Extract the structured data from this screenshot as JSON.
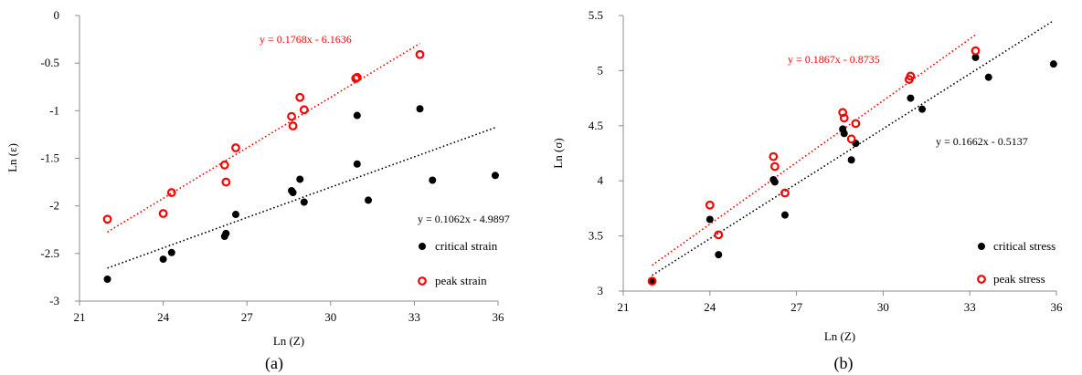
{
  "chart_data": [
    {
      "type": "scatter",
      "caption": "(a)",
      "xlabel": "Ln (Z)",
      "ylabel": "Ln (ε)",
      "xlim": [
        21,
        36
      ],
      "ylim": [
        -3,
        0
      ],
      "xticks": [
        21,
        24,
        27,
        30,
        33,
        36
      ],
      "yticks": [
        0,
        -0.5,
        -1,
        -1.5,
        -2,
        -2.5,
        -3
      ],
      "ytick_labels": [
        "0",
        "-0.5",
        "-1",
        "-1.5",
        "-2",
        "-2.5",
        "-3"
      ],
      "grid": false,
      "legend_position": "bottom-right",
      "series": [
        {
          "name": "critical strain",
          "marker": "filled-circle",
          "color": "#000000",
          "x": [
            22.0,
            24.0,
            24.3,
            26.2,
            26.25,
            26.6,
            28.6,
            28.65,
            28.9,
            29.05,
            30.95,
            30.95,
            31.35,
            33.2,
            33.65,
            35.9
          ],
          "y": [
            -2.77,
            -2.56,
            -2.49,
            -2.32,
            -2.29,
            -2.09,
            -1.84,
            -1.86,
            -1.72,
            -1.96,
            -1.05,
            -1.56,
            -1.94,
            -0.98,
            -1.73,
            -1.68
          ],
          "trendline": {
            "equation": "y = 0.1062x - 4.9897",
            "slope": 0.1062,
            "intercept": -4.9897,
            "x_range": [
              22.0,
              35.9
            ]
          }
        },
        {
          "name": "peak strain",
          "marker": "open-circle",
          "color": "#ff0000",
          "x": [
            22.0,
            24.0,
            24.3,
            26.2,
            26.25,
            26.6,
            28.6,
            28.65,
            28.9,
            29.05,
            30.9,
            30.95,
            33.2
          ],
          "y": [
            -2.14,
            -2.08,
            -1.86,
            -1.57,
            -1.75,
            -1.39,
            -1.06,
            -1.16,
            -0.86,
            -0.99,
            -0.66,
            -0.65,
            -0.41
          ],
          "trendline": {
            "equation": "y = 0.1768x - 6.1636",
            "slope": 0.1768,
            "intercept": -6.1636,
            "x_range": [
              22.0,
              33.2
            ]
          }
        }
      ]
    },
    {
      "type": "scatter",
      "caption": "(b)",
      "xlabel": "Ln (Z)",
      "ylabel": "Ln (σ)",
      "xlim": [
        21,
        36
      ],
      "ylim": [
        3,
        5.5
      ],
      "xticks": [
        21,
        24,
        27,
        30,
        33,
        36
      ],
      "yticks": [
        3,
        3.5,
        4,
        4.5,
        5,
        5.5
      ],
      "ytick_labels": [
        "3",
        "3.5",
        "4",
        "4.5",
        "5",
        "5.5"
      ],
      "grid": false,
      "legend_position": "bottom-right",
      "series": [
        {
          "name": "critical stress",
          "marker": "filled-circle",
          "color": "#000000",
          "x": [
            22.0,
            24.0,
            24.3,
            26.2,
            26.25,
            26.6,
            28.6,
            28.65,
            28.9,
            29.05,
            30.95,
            31.35,
            33.2,
            33.65,
            35.9
          ],
          "y": [
            3.09,
            3.65,
            3.33,
            4.01,
            3.99,
            3.69,
            4.47,
            4.43,
            4.19,
            4.34,
            4.75,
            4.65,
            5.12,
            4.94,
            5.06
          ],
          "trendline": {
            "equation": "y = 0.1662x - 0.5137",
            "slope": 0.1662,
            "intercept": -0.5137,
            "x_range": [
              22.0,
              35.9
            ]
          }
        },
        {
          "name": "peak stress",
          "marker": "open-circle",
          "color": "#ff0000",
          "x": [
            22.0,
            24.0,
            24.3,
            26.2,
            26.25,
            26.6,
            28.6,
            28.65,
            28.9,
            29.05,
            30.9,
            30.95,
            33.2
          ],
          "y": [
            3.09,
            3.78,
            3.51,
            4.22,
            4.13,
            3.89,
            4.62,
            4.57,
            4.38,
            4.52,
            4.92,
            4.95,
            5.18
          ],
          "trendline": {
            "equation": "y = 0.1867x - 0.8735",
            "slope": 0.1867,
            "intercept": -0.8735,
            "x_range": [
              22.0,
              33.2
            ]
          }
        }
      ]
    }
  ]
}
